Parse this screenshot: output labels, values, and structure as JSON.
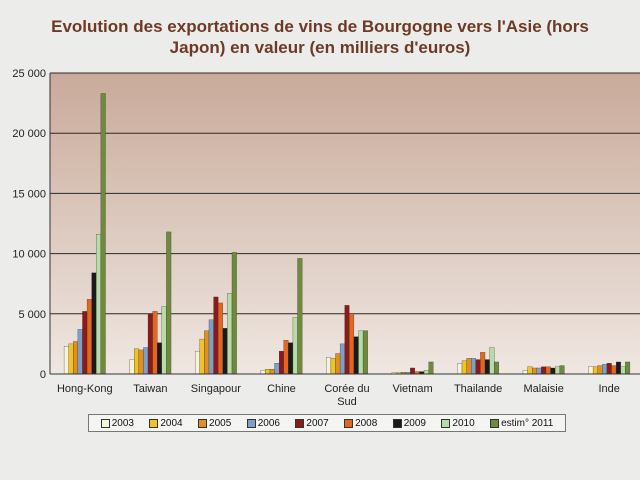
{
  "chart_data": {
    "type": "bar",
    "title": "Evolution des exportations de vins de Bourgogne vers l'Asie (hors Japon) en valeur (en milliers d'euros)",
    "xlabel": "",
    "ylabel": "",
    "ylim": [
      0,
      25000
    ],
    "yticks": [
      "0",
      "5 000",
      "10 000",
      "15 000",
      "20 000",
      "25 000"
    ],
    "grid": true,
    "legend_position": "bottom",
    "categories": [
      "Hong-Kong",
      "Taiwan",
      "Singapour",
      "Chine",
      "Corée du Sud",
      "Vietnam",
      "Thailande",
      "Malaisie",
      "Inde"
    ],
    "series": [
      {
        "name": "2003",
        "color": "#f5f3d9",
        "values": [
          2300,
          1200,
          1900,
          300,
          1400,
          100,
          900,
          300,
          600
        ]
      },
      {
        "name": "2004",
        "color": "#f0c424",
        "values": [
          2500,
          2100,
          2900,
          400,
          1300,
          100,
          1100,
          600,
          600
        ]
      },
      {
        "name": "2005",
        "color": "#e0901f",
        "values": [
          2700,
          2000,
          3600,
          400,
          1700,
          150,
          1300,
          500,
          700
        ]
      },
      {
        "name": "2006",
        "color": "#7f9fc8",
        "values": [
          3700,
          2200,
          4500,
          900,
          2500,
          150,
          1300,
          500,
          800
        ]
      },
      {
        "name": "2007",
        "color": "#8b1a1a",
        "values": [
          5200,
          5000,
          6400,
          1900,
          5700,
          500,
          1200,
          600,
          900
        ]
      },
      {
        "name": "2008",
        "color": "#e5671f",
        "values": [
          6200,
          5200,
          5900,
          2800,
          5000,
          200,
          1800,
          600,
          700
        ]
      },
      {
        "name": "2009",
        "color": "#1a1a1a",
        "values": [
          8400,
          2600,
          3800,
          2600,
          3100,
          200,
          1200,
          500,
          1000
        ]
      },
      {
        "name": "2010",
        "color": "#b8dca5",
        "values": [
          11600,
          5600,
          6700,
          4700,
          3600,
          300,
          2200,
          600,
          600
        ]
      },
      {
        "name": "estim° 2011",
        "color": "#6f8a3c",
        "values": [
          23300,
          11800,
          10100,
          9600,
          3600,
          1000,
          1000,
          700,
          1000
        ]
      }
    ]
  }
}
